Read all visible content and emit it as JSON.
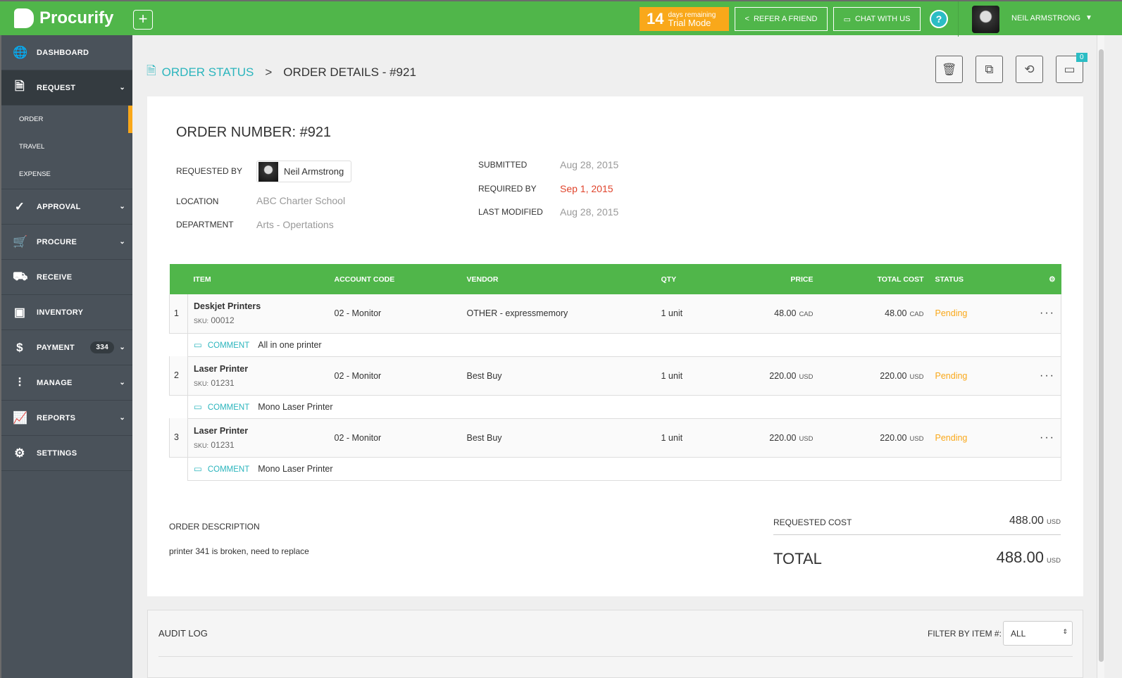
{
  "app": {
    "name": "Procurify",
    "accent": "#50b64a",
    "teal": "#2bb5bd",
    "orange": "#f9a81a"
  },
  "topbar": {
    "trial_days": "14",
    "trial_small": "days remaining",
    "trial_mode": "Trial Mode",
    "refer": "REFER A FRIEND",
    "chat": "CHAT WITH US",
    "help": "?",
    "user": "NEIL ARMSTRONG"
  },
  "sidebar": {
    "items": [
      {
        "label": "DASHBOARD",
        "icon": "globe-icon"
      },
      {
        "label": "REQUEST",
        "icon": "request-icon",
        "sub": [
          "ORDER",
          "TRAVEL",
          "EXPENSE"
        ]
      },
      {
        "label": "APPROVAL",
        "icon": "check-circle-icon"
      },
      {
        "label": "PROCURE",
        "icon": "cart-icon"
      },
      {
        "label": "RECEIVE",
        "icon": "truck-icon"
      },
      {
        "label": "INVENTORY",
        "icon": "box-icon"
      },
      {
        "label": "PAYMENT",
        "icon": "dollar-icon",
        "badge": "334"
      },
      {
        "label": "MANAGE",
        "icon": "sliders-icon"
      },
      {
        "label": "REPORTS",
        "icon": "chart-icon"
      },
      {
        "label": "SETTINGS",
        "icon": "gear-icon"
      }
    ]
  },
  "breadcrumb": {
    "parent": "ORDER STATUS",
    "current": "ORDER DETAILS - #921"
  },
  "actions": {
    "comment_count": "0"
  },
  "order": {
    "title": "ORDER NUMBER: #921",
    "requested_by_label": "REQUESTED BY",
    "requested_by": "Neil Armstrong",
    "location_label": "LOCATION",
    "location": "ABC Charter School",
    "department_label": "DEPARTMENT",
    "department": "Arts - Opertations",
    "submitted_label": "SUBMITTED",
    "submitted": "Aug 28, 2015",
    "required_label": "REQUIRED BY",
    "required": "Sep 1, 2015",
    "modified_label": "LAST MODIFIED",
    "modified": "Aug 28, 2015"
  },
  "table": {
    "headers": [
      "ITEM",
      "ACCOUNT CODE",
      "VENDOR",
      "QTY",
      "PRICE",
      "TOTAL COST",
      "STATUS"
    ],
    "comment_label": "COMMENT",
    "sku_label": "SKU:",
    "rows": [
      {
        "n": "1",
        "item": "Deskjet Printers",
        "sku": "00012",
        "account": "02 - Monitor",
        "vendor": "OTHER - expressmemory",
        "qty": "1 unit",
        "price": "48.00",
        "price_cur": "CAD",
        "total": "48.00",
        "total_cur": "CAD",
        "status": "Pending",
        "comment": "All in one printer"
      },
      {
        "n": "2",
        "item": "Laser Printer",
        "sku": "01231",
        "account": "02 - Monitor",
        "vendor": "Best Buy",
        "qty": "1 unit",
        "price": "220.00",
        "price_cur": "USD",
        "total": "220.00",
        "total_cur": "USD",
        "status": "Pending",
        "comment": "Mono Laser Printer"
      },
      {
        "n": "3",
        "item": "Laser Printer",
        "sku": "01231",
        "account": "02 - Monitor",
        "vendor": "Best Buy",
        "qty": "1 unit",
        "price": "220.00",
        "price_cur": "USD",
        "total": "220.00",
        "total_cur": "USD",
        "status": "Pending",
        "comment": "Mono Laser Printer"
      }
    ]
  },
  "summary": {
    "desc_label": "ORDER DESCRIPTION",
    "desc": "printer 341 is broken, need to replace",
    "requested_label": "REQUESTED COST",
    "requested": "488.00",
    "cur": "USD",
    "total_label": "TOTAL",
    "total": "488.00"
  },
  "audit": {
    "title": "AUDIT LOG",
    "filter_label": "FILTER BY ITEM #:",
    "filter_value": "ALL"
  }
}
